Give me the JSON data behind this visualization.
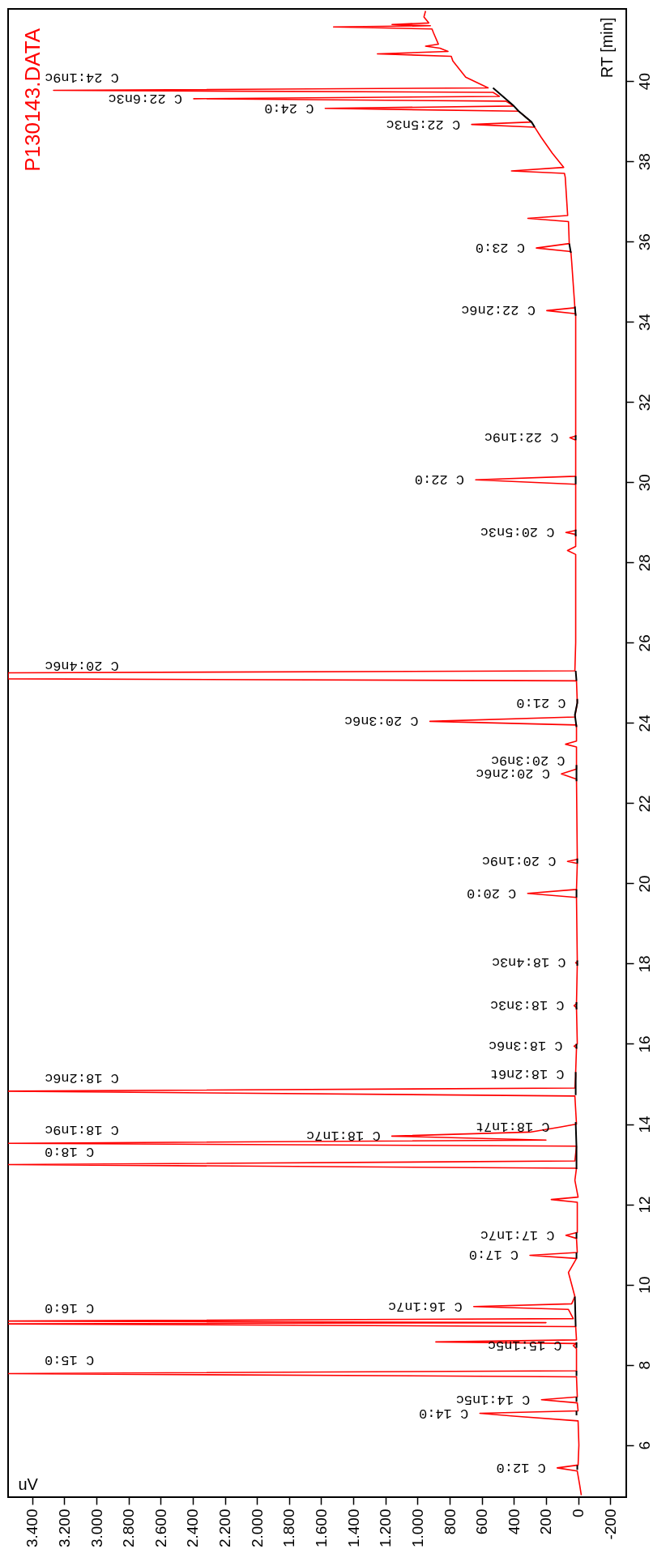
{
  "chart_data": {
    "type": "line",
    "orientation": "horizontal",
    "title": "P130143.DATA",
    "xlabel": "uV",
    "ylabel": "RT [min]",
    "xlim": [
      3550,
      -300
    ],
    "ylim": [
      4.7,
      41.8
    ],
    "xticks": [
      -200,
      0,
      200,
      400,
      600,
      800,
      {
        "value": 1000,
        "label": "1.000"
      },
      {
        "value": 1200,
        "label": "1.200"
      },
      {
        "value": 1400,
        "label": "1.400"
      },
      {
        "value": 1600,
        "label": "1.600"
      },
      {
        "value": 1800,
        "label": "1.800"
      },
      {
        "value": 2000,
        "label": "2.000"
      },
      {
        "value": 2200,
        "label": "2.200"
      },
      {
        "value": 2400,
        "label": "2.400"
      },
      {
        "value": 2600,
        "label": "2.600"
      },
      {
        "value": 2800,
        "label": "2.800"
      },
      {
        "value": 3000,
        "label": "3.000"
      },
      {
        "value": 3200,
        "label": "3.200"
      },
      {
        "value": 3400,
        "label": "3.400"
      }
    ],
    "yticks": [
      6,
      8,
      10,
      12,
      14,
      16,
      18,
      20,
      22,
      24,
      26,
      28,
      30,
      32,
      34,
      36,
      38,
      40
    ],
    "series": [
      {
        "color": "#ff0000",
        "values": [
          -20,
          -10,
          5,
          130,
          0,
          -5,
          0,
          400,
          612,
          0,
          5,
          228,
          5,
          10,
          3550,
          10,
          10,
          30,
          10,
          886,
          10,
          15,
          3550,
          200,
          3550,
          30,
          60,
          650,
          40,
          20,
          40,
          60,
          10,
          300,
          5,
          10,
          76,
          5,
          5,
          167,
          0,
          20,
          10,
          3550,
          20,
          10,
          3550,
          200,
          1160,
          300,
          106,
          10,
          20,
          3550,
          20,
          15,
          15,
          15,
          10,
          25,
          5,
          10,
          25,
          10,
          5,
          15,
          5,
          10,
          314,
          10,
          5,
          66,
          5,
          10,
          104,
          10,
          10,
          10,
          10,
          78,
          10,
          10,
          923,
          20,
          5,
          10,
          3550,
          3550,
          20,
          15,
          15,
          66,
          15,
          15,
          76,
          15,
          15,
          638,
          15,
          15,
          51,
          15,
          15,
          195,
          20,
          40,
          45,
          260,
          55,
          60,
          313,
          65,
          80,
          85,
          415,
          90,
          160,
          230,
          270,
          663,
          290,
          370,
          1575,
          400,
          450,
          2394,
          490,
          530,
          3267,
          560,
          700,
          780,
          790,
          1250,
          810,
          860,
          950,
          870,
          900,
          910,
          1523,
          920,
          1159,
          930,
          960,
          950
        ],
        "x": [
          4.75,
          5.0,
          5.35,
          5.43,
          5.5,
          6.0,
          6.6,
          6.72,
          6.79,
          6.85,
          7.05,
          7.13,
          7.2,
          7.7,
          7.78,
          7.85,
          8.4,
          8.48,
          8.53,
          8.57,
          8.62,
          8.95,
          9.02,
          9.05,
          9.09,
          9.15,
          9.38,
          9.45,
          9.52,
          9.7,
          10.0,
          10.3,
          10.65,
          10.73,
          10.8,
          11.15,
          11.23,
          11.3,
          12.05,
          12.12,
          12.18,
          12.6,
          12.9,
          12.99,
          13.08,
          13.45,
          13.52,
          13.6,
          13.7,
          13.8,
          13.93,
          14.0,
          14.7,
          14.82,
          14.9,
          15.2,
          15.25,
          15.3,
          15.9,
          15.94,
          16.0,
          16.9,
          16.95,
          17.0,
          18.0,
          18.02,
          18.05,
          19.65,
          19.75,
          19.85,
          20.5,
          20.55,
          20.6,
          22.6,
          22.73,
          22.85,
          22.89,
          22.93,
          23.4,
          23.47,
          23.55,
          23.95,
          24.04,
          24.15,
          24.5,
          25.05,
          25.1,
          25.25,
          25.3,
          26.0,
          28.2,
          28.3,
          28.4,
          28.7,
          28.75,
          28.8,
          29.95,
          30.06,
          30.15,
          31.05,
          31.11,
          31.15,
          34.2,
          34.28,
          34.35,
          35.5,
          35.75,
          35.84,
          35.95,
          36.5,
          36.58,
          36.65,
          37.6,
          37.7,
          37.76,
          37.85,
          38.2,
          38.6,
          38.85,
          38.92,
          38.98,
          39.25,
          39.32,
          39.38,
          39.5,
          39.56,
          39.62,
          39.72,
          39.77,
          39.83,
          40.1,
          40.5,
          40.62,
          40.68,
          40.74,
          40.82,
          40.87,
          40.92,
          41.2,
          41.3,
          41.35,
          41.38,
          41.41,
          41.45,
          41.6,
          41.75
        ]
      },
      {
        "color": "#000000",
        "values": [
          5,
          5,
          null,
          10,
          10,
          null,
          10,
          10,
          null,
          10,
          10,
          null,
          10,
          10,
          null,
          15,
          20,
          null,
          10,
          10,
          null,
          10,
          10,
          null,
          10,
          10,
          10,
          15,
          null,
          15,
          15,
          15,
          null,
          10,
          10,
          null,
          10,
          10,
          null,
          5,
          5,
          null,
          10,
          10,
          null,
          5,
          5,
          null,
          10,
          10,
          null,
          10,
          20,
          5,
          5,
          null,
          10,
          15,
          null,
          15,
          15,
          null,
          15,
          15,
          null,
          15,
          15,
          null,
          15,
          20,
          null,
          45,
          55,
          null,
          270,
          290,
          370,
          400,
          530
        ],
        "x": [
          5.38,
          5.5,
          null,
          6.74,
          6.85,
          null,
          7.08,
          7.2,
          null,
          7.72,
          7.85,
          null,
          8.42,
          8.56,
          null,
          8.95,
          9.7,
          null,
          10.65,
          10.8,
          null,
          11.15,
          11.3,
          null,
          12.88,
          13.1,
          13.42,
          14.05,
          null,
          14.72,
          14.92,
          15.3,
          null,
          15.88,
          16.0,
          null,
          16.86,
          17.04,
          null,
          17.95,
          18.08,
          null,
          19.65,
          19.85,
          null,
          20.5,
          20.62,
          null,
          22.55,
          22.95,
          null,
          23.9,
          24.2,
          24.5,
          24.6,
          null,
          25.05,
          25.3,
          null,
          28.65,
          28.82,
          null,
          29.95,
          30.15,
          null,
          31.05,
          31.17,
          null,
          34.15,
          34.38,
          null,
          35.72,
          35.95,
          null,
          38.85,
          38.98,
          39.25,
          39.38,
          39.83
        ]
      }
    ],
    "annotations": [
      {
        "text": "C 12:0",
        "x": 130,
        "y": 5.43
      },
      {
        "text": "C 14:0",
        "x": 612,
        "y": 6.79
      },
      {
        "text": "C 14:1n5c",
        "x": 228,
        "y": 7.13
      },
      {
        "text": "C 15:0",
        "x": 3550,
        "y": 7.78
      },
      {
        "text": "C 15:1n5c",
        "x": 30,
        "y": 8.48
      },
      {
        "text": "C 16:0",
        "x": 3550,
        "y": 9.09
      },
      {
        "text": "C 16:1n7c",
        "x": 650,
        "y": 9.45
      },
      {
        "text": "C 17:0",
        "x": 300,
        "y": 10.73
      },
      {
        "text": "C 17:1n7c",
        "x": 76,
        "y": 11.23
      },
      {
        "text": "C 18:0",
        "x": 3550,
        "y": 12.99
      },
      {
        "text": "C 18:1n9c",
        "x": 3550,
        "y": 13.52
      },
      {
        "text": "C 18:1n7c",
        "x": 1160,
        "y": 13.7
      },
      {
        "text": "C 18:1n7t",
        "x": 106,
        "y": 13.93
      },
      {
        "text": "C 18:2n6c",
        "x": 3550,
        "y": 14.82
      },
      {
        "text": "C 18:2n6t",
        "x": 15,
        "y": 15.25
      },
      {
        "text": "C 18:3n6c",
        "x": 25,
        "y": 15.94
      },
      {
        "text": "C 18:3n3c",
        "x": 15,
        "y": 16.95
      },
      {
        "text": "C 18:4n3c",
        "x": 5,
        "y": 18.02
      },
      {
        "text": "C 20:0",
        "x": 314,
        "y": 19.75
      },
      {
        "text": "C 20:1n9c",
        "x": 66,
        "y": 20.55
      },
      {
        "text": "C 20:2n6c",
        "x": 104,
        "y": 22.73
      },
      {
        "text": "C 20:3n9c",
        "x": 10,
        "y": 22.89
      },
      {
        "text": "C 20:3n6c",
        "x": 923,
        "y": 24.04
      },
      {
        "text": "C 21:0",
        "x": 5,
        "y": 24.5
      },
      {
        "text": "C 20:4n6c",
        "x": 3550,
        "y": 25.1
      },
      {
        "text": "C 20:5n3c",
        "x": 76,
        "y": 28.75
      },
      {
        "text": "C 22:0",
        "x": 638,
        "y": 30.06
      },
      {
        "text": "C 22:1n9c",
        "x": 51,
        "y": 31.11
      },
      {
        "text": "C 22:2n6c",
        "x": 195,
        "y": 34.28
      },
      {
        "text": "C 23:0",
        "x": 260,
        "y": 35.84
      },
      {
        "text": "C 22:5n3c",
        "x": 663,
        "y": 38.92
      },
      {
        "text": "C 24:0",
        "x": 1575,
        "y": 39.32
      },
      {
        "text": "C 22:6n3c",
        "x": 2394,
        "y": 39.56
      },
      {
        "text": "C 24:1n9c",
        "x": 3267,
        "y": 39.77
      }
    ]
  }
}
